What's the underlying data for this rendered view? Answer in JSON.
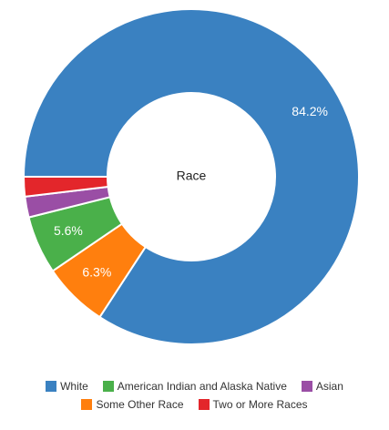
{
  "chart_data": {
    "type": "pie",
    "style": "donut",
    "center_label": "Race",
    "slices": [
      {
        "name": "White",
        "value": 84.2,
        "label": "84.2%",
        "color": "#3a81c1"
      },
      {
        "name": "Some Other Race",
        "value": 6.3,
        "label": "6.3%",
        "color": "#ff7f0e"
      },
      {
        "name": "American Indian and Alaska Native",
        "value": 5.6,
        "label": "5.6%",
        "color": "#4ab04a"
      },
      {
        "name": "Asian",
        "value": 2.0,
        "label": "",
        "color": "#9a4ea5"
      },
      {
        "name": "Two or More Races",
        "value": 1.9,
        "label": "",
        "color": "#e3262b"
      }
    ],
    "legend": {
      "placement": "bottom",
      "rows": [
        [
          "White",
          "American Indian and Alaska Native",
          "Asian"
        ],
        [
          "Some Other Race",
          "Two or More Races"
        ]
      ]
    }
  }
}
